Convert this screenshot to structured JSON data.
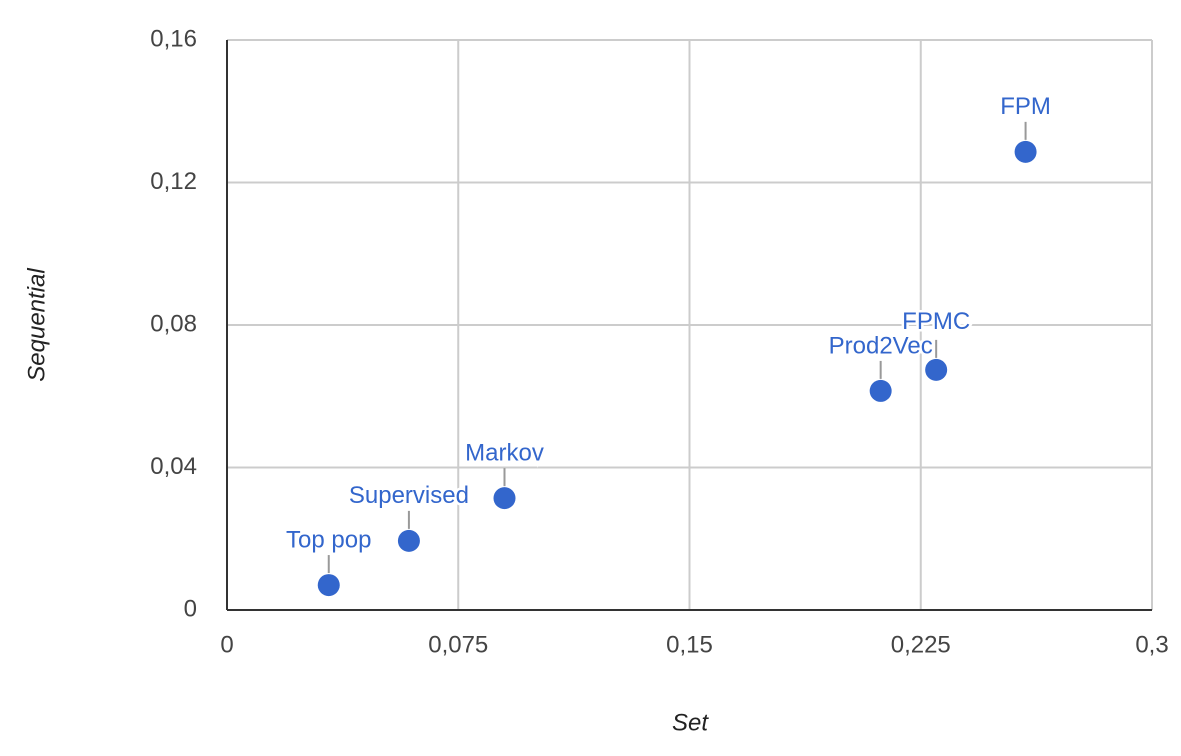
{
  "chart_data": {
    "type": "scatter",
    "x_label": "Set",
    "y_label": "Sequential",
    "labels": [
      "Top pop",
      "Supervised",
      "Markov",
      "Prod2Vec",
      "FPMC",
      "FPM"
    ],
    "x": [
      0.033,
      0.059,
      0.09,
      0.212,
      0.23,
      0.259
    ],
    "values": [
      0.007,
      0.0194,
      0.0314,
      0.0615,
      0.0674,
      0.1286
    ],
    "color": "#3366cc",
    "xlim": [
      0,
      0.3
    ],
    "xticks": [
      0,
      {
        "value": 0.075,
        "label": "0,075"
      },
      {
        "value": 0.15,
        "label": "0,15"
      },
      {
        "value": 0.225,
        "label": "0,225"
      },
      {
        "value": 0.3,
        "label": "0,3"
      }
    ],
    "ylim": [
      0,
      0.16
    ],
    "yticks": [
      0,
      {
        "value": 0.04,
        "label": "0,04"
      },
      {
        "value": 0.08,
        "label": "0,08"
      },
      {
        "value": 0.12,
        "label": "0,12"
      },
      {
        "value": 0.16,
        "label": "0,16"
      }
    ],
    "grid": true
  }
}
